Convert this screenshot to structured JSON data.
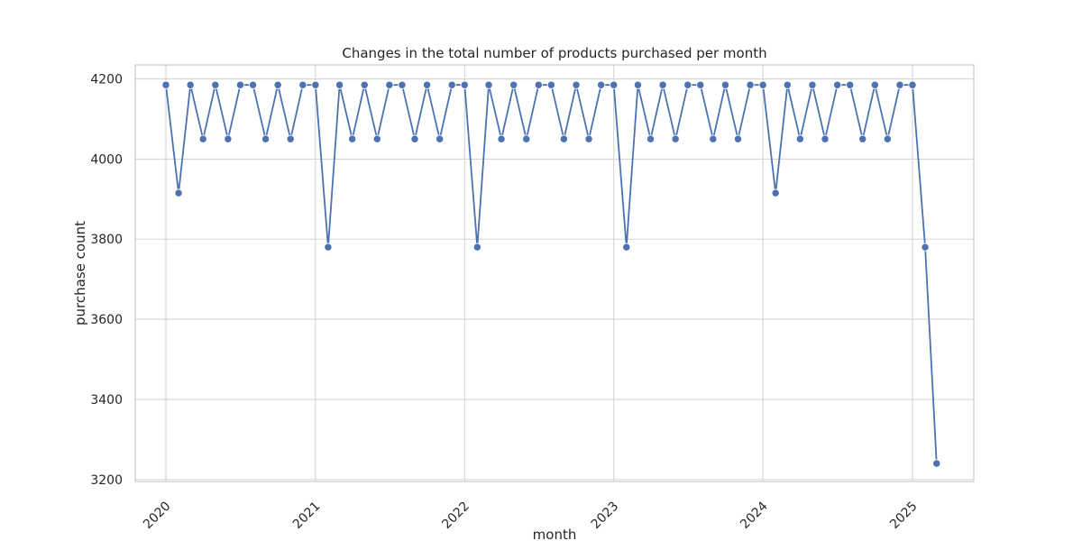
{
  "chart_data": {
    "type": "line",
    "title": "Changes in the total number of products purchased per month",
    "xlabel": "month",
    "ylabel": "purchase count",
    "ylim": [
      3195,
      4235
    ],
    "xlim": [
      "2019-10-18",
      "2025-05-31"
    ],
    "yticks": [
      3200,
      3400,
      3600,
      3800,
      4000,
      4200
    ],
    "xticks": [
      "2020-01-01",
      "2021-01-01",
      "2022-01-01",
      "2023-01-01",
      "2024-01-01",
      "2025-01-01"
    ],
    "xtick_labels": [
      "2020",
      "2021",
      "2022",
      "2023",
      "2024",
      "2025"
    ],
    "grid": true,
    "color": "#4c72b0",
    "series": [
      {
        "x": [
          "2020-01-01",
          "2020-02-01",
          "2020-03-01",
          "2020-04-01",
          "2020-05-01",
          "2020-06-01",
          "2020-07-01",
          "2020-08-01",
          "2020-09-01",
          "2020-10-01",
          "2020-11-01",
          "2020-12-01",
          "2021-01-01",
          "2021-02-01",
          "2021-03-01",
          "2021-04-01",
          "2021-05-01",
          "2021-06-01",
          "2021-07-01",
          "2021-08-01",
          "2021-09-01",
          "2021-10-01",
          "2021-11-01",
          "2021-12-01",
          "2022-01-01",
          "2022-02-01",
          "2022-03-01",
          "2022-04-01",
          "2022-05-01",
          "2022-06-01",
          "2022-07-01",
          "2022-08-01",
          "2022-09-01",
          "2022-10-01",
          "2022-11-01",
          "2022-12-01",
          "2023-01-01",
          "2023-02-01",
          "2023-03-01",
          "2023-04-01",
          "2023-05-01",
          "2023-06-01",
          "2023-07-01",
          "2023-08-01",
          "2023-09-01",
          "2023-10-01",
          "2023-11-01",
          "2023-12-01",
          "2024-01-01",
          "2024-02-01",
          "2024-03-01",
          "2024-04-01",
          "2024-05-01",
          "2024-06-01",
          "2024-07-01",
          "2024-08-01",
          "2024-09-01",
          "2024-10-01",
          "2024-11-01",
          "2024-12-01",
          "2025-01-01",
          "2025-02-01",
          "2025-03-01"
        ],
        "values": [
          4185,
          3915,
          4185,
          4050,
          4185,
          4050,
          4185,
          4185,
          4050,
          4185,
          4050,
          4185,
          4185,
          3780,
          4185,
          4050,
          4185,
          4050,
          4185,
          4185,
          4050,
          4185,
          4050,
          4185,
          4185,
          3780,
          4185,
          4050,
          4185,
          4050,
          4185,
          4185,
          4050,
          4185,
          4050,
          4185,
          4185,
          3780,
          4185,
          4050,
          4185,
          4050,
          4185,
          4185,
          4050,
          4185,
          4050,
          4185,
          4185,
          3915,
          4185,
          4050,
          4185,
          4050,
          4185,
          4185,
          4050,
          4185,
          4050,
          4185,
          4185,
          3780,
          3240
        ]
      }
    ]
  }
}
